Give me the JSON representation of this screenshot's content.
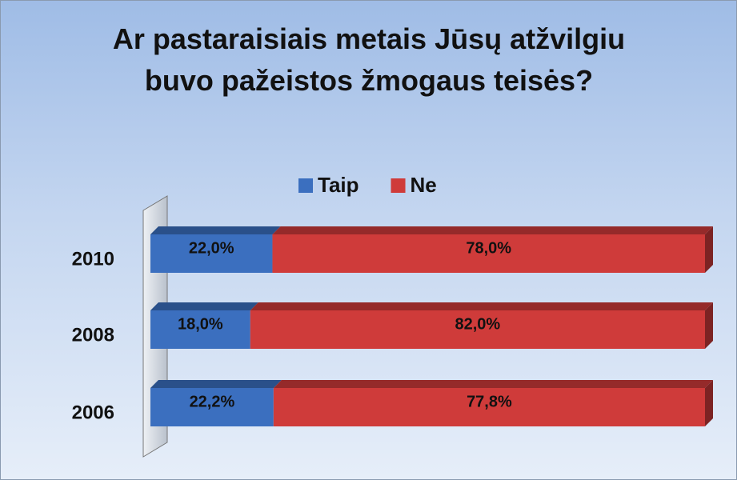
{
  "chart_data": {
    "type": "bar",
    "title": "Ar pastaraisiais metais Jūsų atžvilgiu buvo pažeistos žmogaus teisės?",
    "categories": [
      "2010",
      "2008",
      "2006"
    ],
    "series": [
      {
        "name": "Taip",
        "color": "#3b6fbf",
        "values": [
          22.0,
          18.0,
          22.2
        ],
        "value_labels": [
          "22,0%",
          "18,0%",
          "22,2%"
        ]
      },
      {
        "name": "Ne",
        "color": "#cf3b3a",
        "values": [
          78.0,
          82.0,
          77.8
        ],
        "value_labels": [
          "78,0%",
          "82,0%",
          "77,8%"
        ]
      }
    ],
    "legend": "top"
  }
}
